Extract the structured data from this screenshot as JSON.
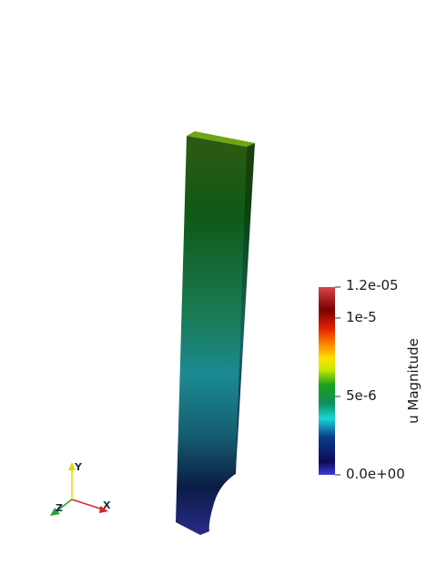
{
  "colorbar": {
    "title": "u Magnitude",
    "ticks": [
      "1.2e-05",
      "1e-5",
      "5e-6",
      "0.0e+00"
    ]
  },
  "orientation_axes": {
    "x_label": "X",
    "y_label": "Y",
    "z_label": "Z",
    "x_color": "#d62728",
    "y_color": "#e5d400",
    "z_color": "#2ca02c"
  }
}
